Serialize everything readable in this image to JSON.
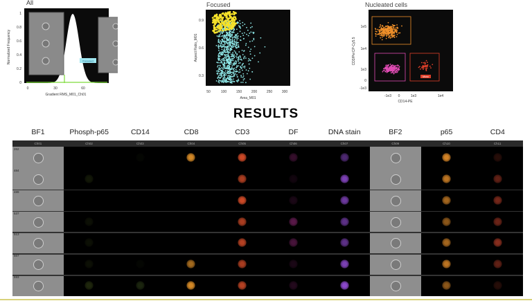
{
  "top_plots": {
    "all": {
      "title": "All",
      "ylabel": "Normalized Frequency",
      "xlabel": "Gradient RMS_M01_Ch01",
      "yticks": [
        "0",
        "0.2",
        "0.4",
        "0.6",
        "0.8",
        "1"
      ],
      "xticks": [
        "0",
        "30",
        "60"
      ],
      "gate_label": "Focused",
      "colors": {
        "bg": "#0b0b0b",
        "hist": "#ffffff",
        "gate": "#7ddc3a"
      }
    },
    "focused": {
      "title": "Focused",
      "ylabel": "Aspect Ratio_M01",
      "xlabel": "Area_M01",
      "yticks": [
        "0.9",
        "0.6",
        "0.3"
      ],
      "xticks": [
        "50",
        "100",
        "150",
        "200",
        "250",
        "300"
      ],
      "colors": {
        "gated": "#f5e12a",
        "other": "#8fe8e8"
      }
    },
    "nucleated": {
      "title": "Nucleated cells",
      "ylabel": "CD3/PerCP-Cy5.5",
      "xlabel": "CD14-PE",
      "yticks": [
        "1e5",
        "1e4",
        "1e3",
        "0",
        "-1e3"
      ],
      "xticks": [
        "-1e3",
        "0",
        "1e3",
        "1e4"
      ],
      "gate_label": "Mono",
      "colors": {
        "t": "#f0902a",
        "b": "#e04cb4",
        "mono": "#e0402a"
      }
    }
  },
  "results_title": "RESULTS",
  "columns": [
    {
      "label": "BF1",
      "channel": "Ch01",
      "type": "bf",
      "color": "#cfcfcf",
      "intensity": [
        0.5,
        0.5,
        0.5,
        0.7,
        0.4,
        0.6,
        0.6
      ]
    },
    {
      "label": "Phosph-p65",
      "channel": "Ch02",
      "type": "fl",
      "color": "#7a9a30",
      "intensity": [
        0,
        0.15,
        0,
        0.1,
        0.1,
        0.1,
        0.25
      ]
    },
    {
      "label": "CD14",
      "channel": "Ch03",
      "type": "fl",
      "color": "#5a7a30",
      "intensity": [
        0.05,
        0,
        0,
        0,
        0,
        0.05,
        0.3
      ]
    },
    {
      "label": "CD8",
      "channel": "Ch04",
      "type": "fl",
      "color": "#e8962a",
      "intensity": [
        0.9,
        0,
        0,
        0,
        0,
        0.7,
        0.9
      ]
    },
    {
      "label": "CD3",
      "channel": "Ch05",
      "type": "fl",
      "color": "#e0502a",
      "intensity": [
        0.9,
        0.75,
        0.9,
        0.75,
        0.8,
        0.75,
        0.8
      ]
    },
    {
      "label": "DF",
      "channel": "Ch06",
      "type": "fl",
      "color": "#b03090",
      "intensity": [
        0.3,
        0.1,
        0.15,
        0.5,
        0.4,
        0.15,
        0.2
      ]
    },
    {
      "label": "DNA stain",
      "channel": "Ch07",
      "type": "fl",
      "color": "#9a50e0",
      "intensity": [
        0.5,
        0.8,
        0.7,
        0.6,
        0.6,
        0.8,
        0.9
      ]
    },
    {
      "label": "BF2",
      "channel": "Ch09",
      "type": "bf",
      "color": "#cfcfcf",
      "intensity": [
        0.6,
        0.6,
        0.6,
        0.5,
        0.6,
        0.6,
        0.6
      ]
    },
    {
      "label": "p65",
      "channel": "Ch10",
      "type": "fl",
      "color": "#e8902a",
      "intensity": [
        0.9,
        0.8,
        0.7,
        0.6,
        0.7,
        0.8,
        0.6
      ]
    },
    {
      "label": "CD4",
      "channel": "Ch11",
      "type": "fl",
      "color": "#c0402a",
      "intensity": [
        0.2,
        0.5,
        0.6,
        0.55,
        0.7,
        0.5,
        0.2
      ]
    }
  ],
  "row_ids": [
    "262",
    "484",
    "489",
    "537",
    "513",
    "567",
    "593"
  ]
}
